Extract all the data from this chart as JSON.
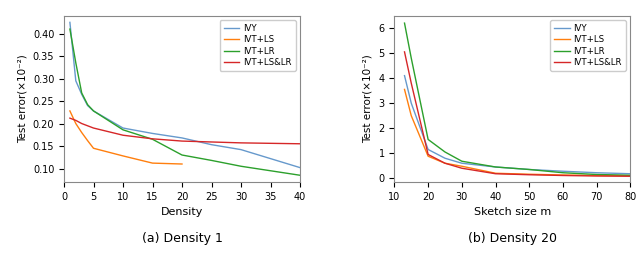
{
  "plot_a": {
    "caption": "(a) Density 1",
    "xlabel": "Density",
    "ylabel": "Test error(×10⁻²)",
    "xlim": [
      0,
      40
    ],
    "ylim": [
      0.07,
      0.44
    ],
    "yticks": [
      0.1,
      0.15,
      0.2,
      0.25,
      0.3,
      0.35,
      0.4
    ],
    "xticks": [
      0,
      5,
      10,
      15,
      20,
      25,
      30,
      35,
      40
    ],
    "IVY": {
      "x": [
        1,
        2,
        3,
        4,
        5,
        10,
        15,
        20,
        25,
        30,
        35,
        40
      ],
      "y": [
        0.425,
        0.295,
        0.265,
        0.24,
        0.228,
        0.19,
        0.178,
        0.168,
        0.153,
        0.142,
        0.122,
        0.102
      ],
      "color": "#6699cc",
      "label": "IVY"
    },
    "IVT_LS": {
      "x": [
        1,
        2,
        3,
        4,
        5,
        10,
        15,
        20
      ],
      "y": [
        0.228,
        0.2,
        0.18,
        0.162,
        0.145,
        0.128,
        0.112,
        0.11
      ],
      "color": "#ff7f0e",
      "label": "IVT+LS"
    },
    "IVT_LR": {
      "x": [
        1,
        2,
        3,
        4,
        5,
        10,
        15,
        20,
        25,
        30,
        35,
        40
      ],
      "y": [
        0.41,
        0.335,
        0.268,
        0.242,
        0.228,
        0.186,
        0.165,
        0.13,
        0.118,
        0.105,
        0.095,
        0.085
      ],
      "color": "#2ca02c",
      "label": "IVT+LR"
    },
    "IVT_LS_LR": {
      "x": [
        1,
        2,
        3,
        4,
        5,
        10,
        15,
        20,
        25,
        30,
        35,
        40
      ],
      "y": [
        0.212,
        0.207,
        0.2,
        0.195,
        0.19,
        0.174,
        0.166,
        0.161,
        0.159,
        0.157,
        0.156,
        0.155
      ],
      "color": "#d62728",
      "label": "IVT+LS&LR"
    }
  },
  "plot_b": {
    "caption": "(b) Density 20",
    "xlabel": "Sketch size m",
    "ylabel": "Test error(×10⁻²)",
    "xlim": [
      10,
      80
    ],
    "ylim": [
      -0.15,
      6.5
    ],
    "yticks": [
      0,
      1,
      2,
      3,
      4,
      5,
      6
    ],
    "xticks": [
      10,
      20,
      30,
      40,
      50,
      60,
      70,
      80
    ],
    "IVY": {
      "x": [
        13,
        15,
        20,
        25,
        30,
        40,
        50,
        60,
        70,
        80
      ],
      "y": [
        4.1,
        3.0,
        1.15,
        0.8,
        0.6,
        0.45,
        0.35,
        0.28,
        0.22,
        0.18
      ],
      "color": "#6699cc",
      "label": "IVY"
    },
    "IVT_LS": {
      "x": [
        13,
        15,
        20,
        25,
        30,
        40,
        50,
        60,
        70,
        80
      ],
      "y": [
        3.55,
        2.5,
        0.88,
        0.6,
        0.48,
        0.2,
        0.16,
        0.13,
        0.11,
        0.1
      ],
      "color": "#ff7f0e",
      "label": "IVT+LS"
    },
    "IVT_LR": {
      "x": [
        13,
        15,
        20,
        25,
        30,
        40,
        50,
        60,
        70,
        80
      ],
      "y": [
        6.2,
        4.8,
        1.55,
        1.05,
        0.68,
        0.45,
        0.35,
        0.22,
        0.15,
        0.12
      ],
      "color": "#2ca02c",
      "label": "IVT+LR"
    },
    "IVT_LS_LR": {
      "x": [
        13,
        15,
        20,
        25,
        30,
        40,
        50,
        60,
        70,
        80
      ],
      "y": [
        5.05,
        3.8,
        0.95,
        0.6,
        0.4,
        0.18,
        0.14,
        0.11,
        0.09,
        0.08
      ],
      "color": "#d62728",
      "label": "IVT+LS&LR"
    }
  }
}
